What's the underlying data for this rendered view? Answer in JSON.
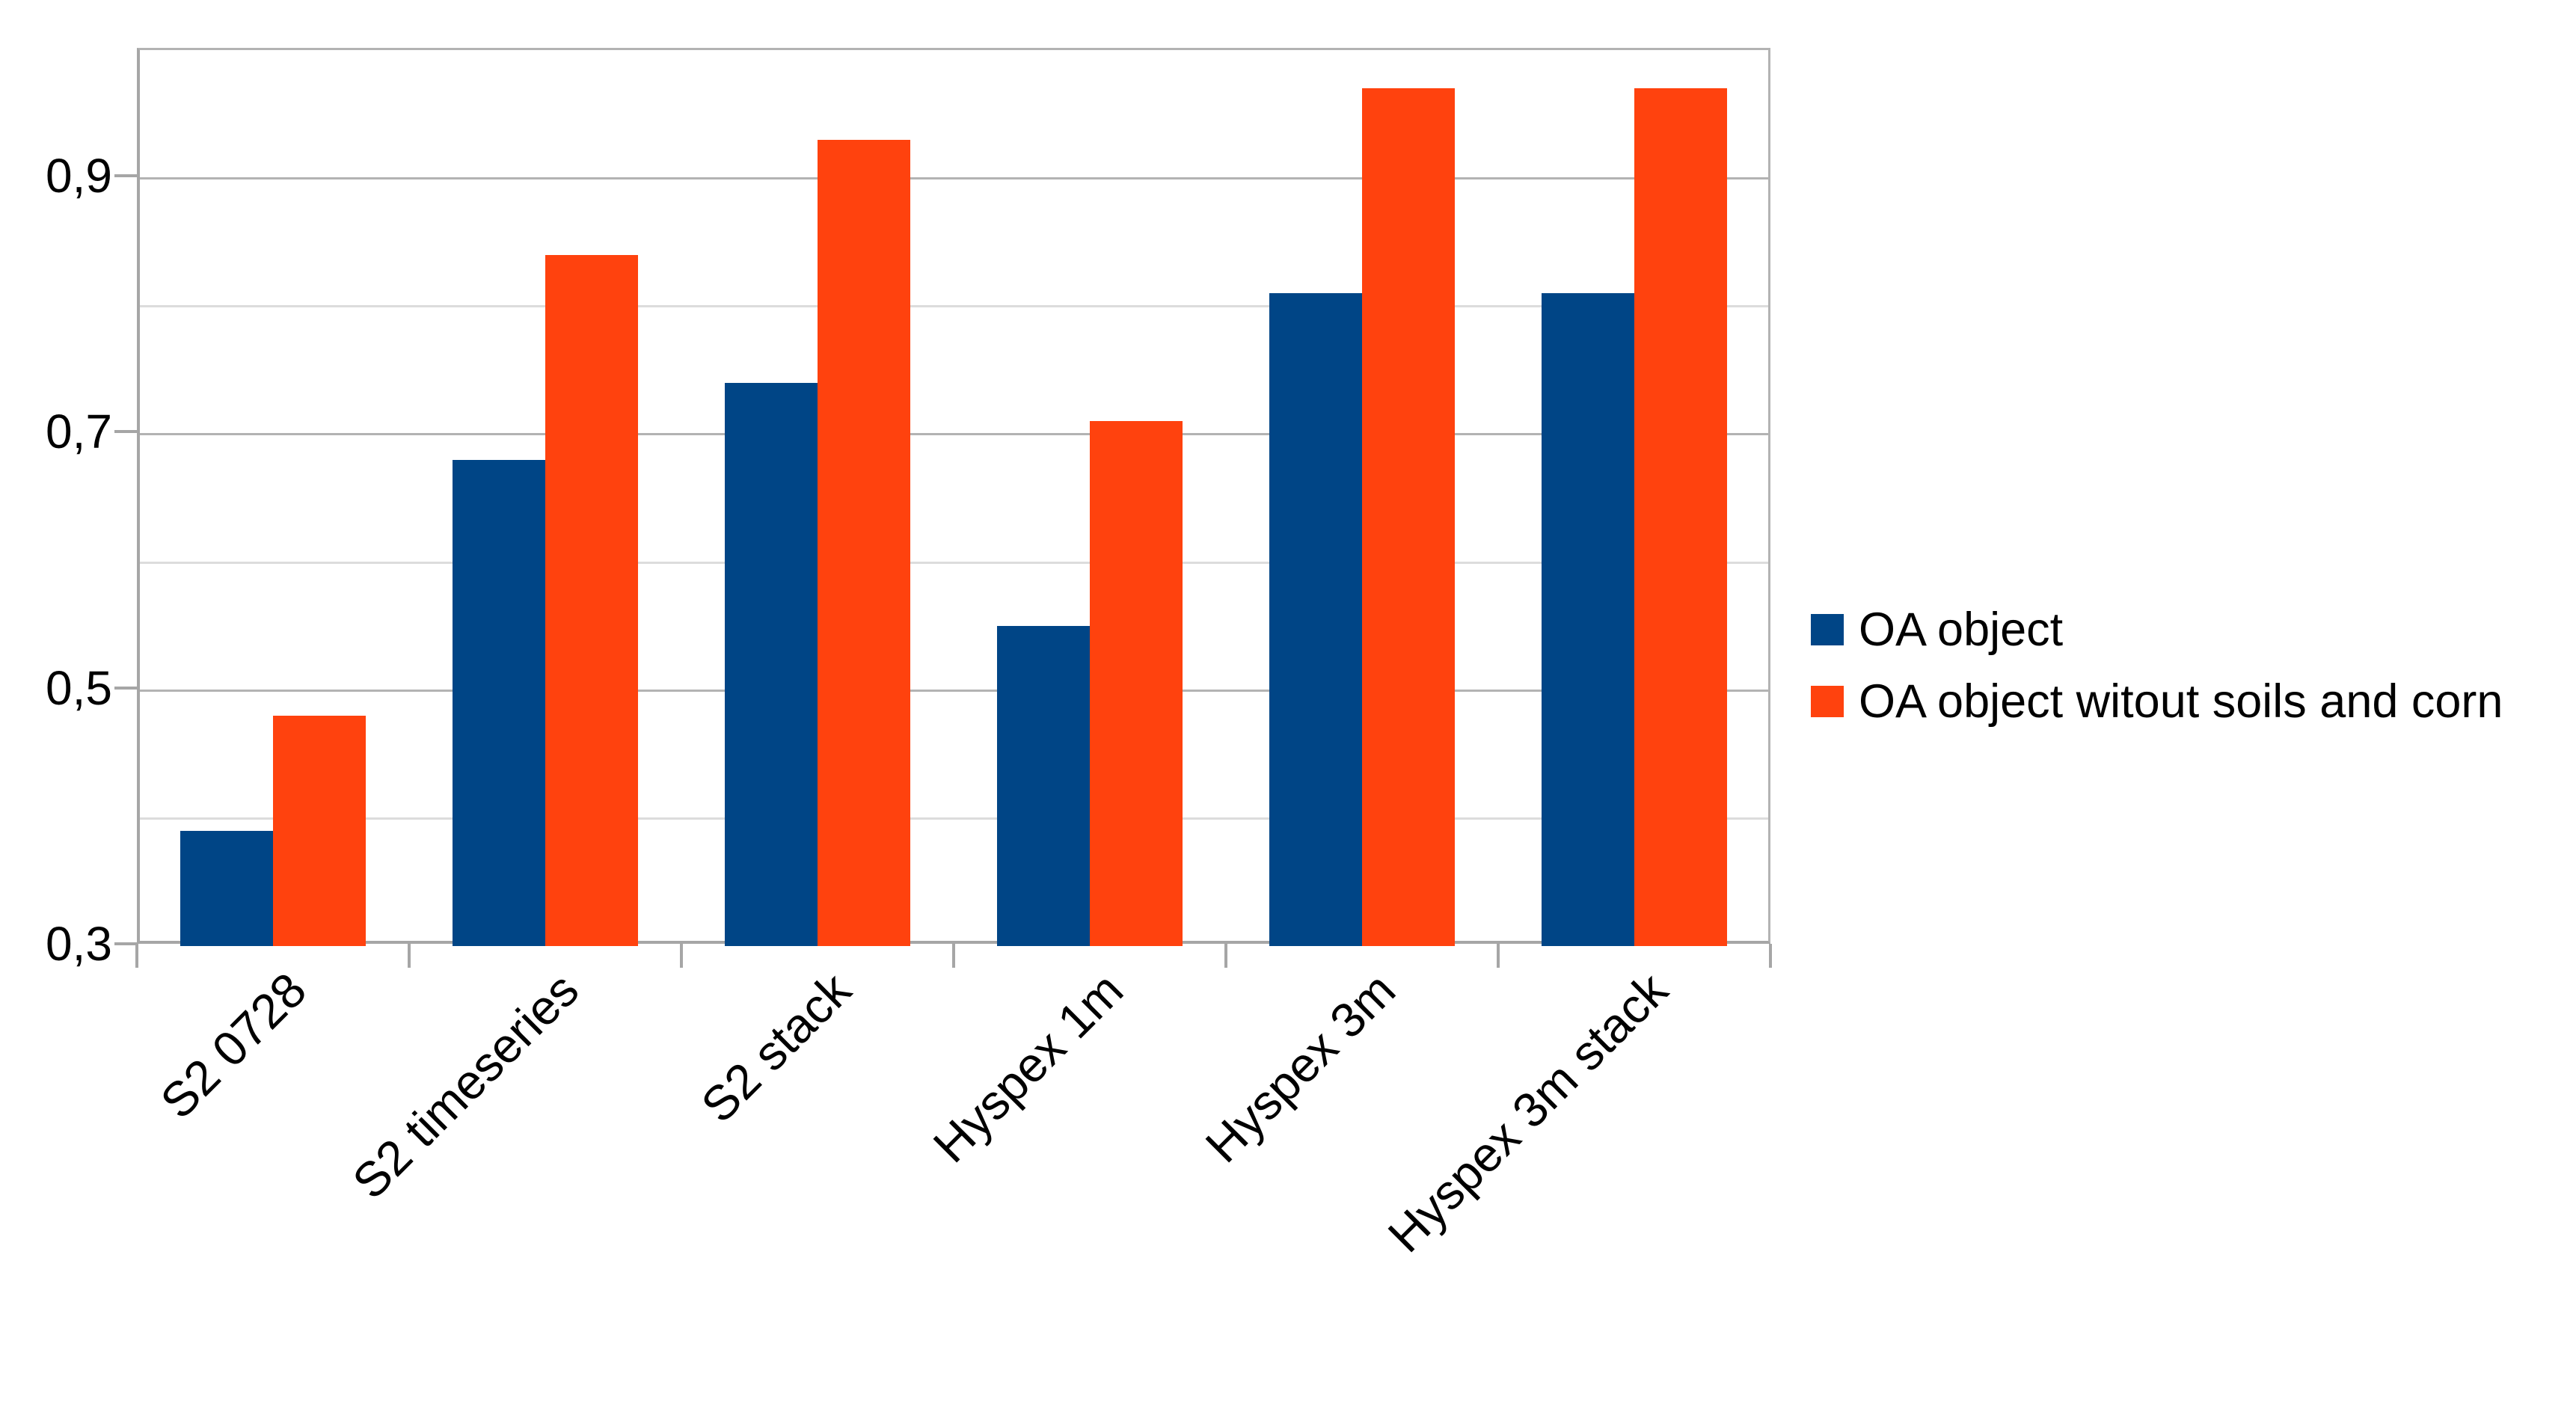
{
  "chart_data": {
    "type": "bar",
    "title": "",
    "xlabel": "",
    "ylabel": "",
    "categories": [
      "S2 0728",
      "S2 timeseries",
      "S2 stack",
      "Hyspex 1m",
      "Hyspex 3m",
      "Hyspex 3m stack"
    ],
    "series": [
      {
        "name": "OA object",
        "color": "#004586",
        "values": [
          0.39,
          0.68,
          0.74,
          0.55,
          0.81,
          0.81
        ]
      },
      {
        "name": "OA object witout soils and corn",
        "color": "#FF420E",
        "values": [
          0.48,
          0.84,
          0.93,
          0.71,
          0.97,
          0.97
        ]
      }
    ],
    "ylim": [
      0.3,
      1.0
    ],
    "yticks": [
      0.3,
      0.5,
      0.7,
      0.9
    ],
    "ytick_labels": [
      "0,3",
      "0,5",
      "0,7",
      "0,9"
    ],
    "ygrid_minor_step": 0.1,
    "decimal_separator": ",",
    "grid": "horizontal",
    "legend_position": "right",
    "x_label_rotation_deg": 45
  },
  "style": {
    "background": "#ffffff",
    "axis_color": "#a6a6a6",
    "frame_color": "#b3b3b3",
    "major_grid_color": "#b3b3b3",
    "minor_grid_color": "#dcdcdc",
    "text_color": "#000000"
  }
}
